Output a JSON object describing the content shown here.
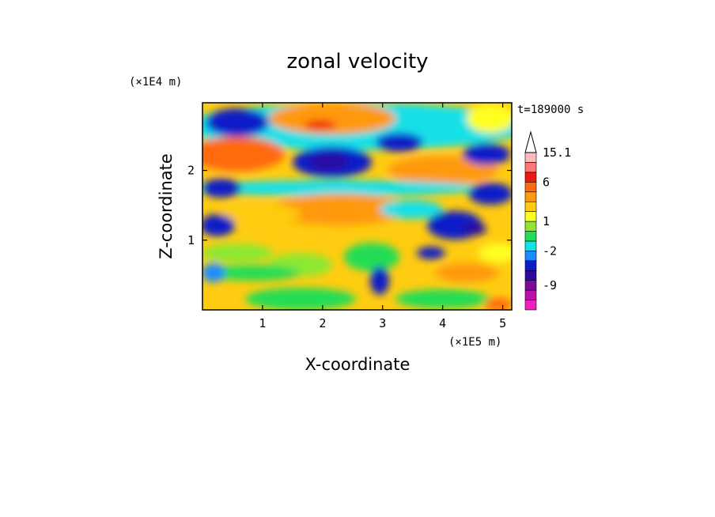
{
  "chart_data": {
    "type": "heatmap",
    "title": "zonal velocity",
    "xlabel": "X-coordinate",
    "ylabel": "Z-coordinate",
    "x_scale_note": "(×1E5 m)",
    "y_scale_note": "(×1E4 m)",
    "time_label": "t=189000 s",
    "xlim": [
      0,
      5.15
    ],
    "ylim": [
      0,
      2.97
    ],
    "x_ticks": [
      1,
      2,
      3,
      4,
      5
    ],
    "y_ticks": [
      1,
      2
    ],
    "colorbar": {
      "levels_bottom_to_top": [
        {
          "color": "#ee22bb"
        },
        {
          "color": "#bb11aa"
        },
        {
          "color": "#7d0a9a"
        },
        {
          "color": "#2a0aa0"
        },
        {
          "color": "#0a1fc8"
        },
        {
          "color": "#1e8cff"
        },
        {
          "color": "#18e0e8"
        },
        {
          "color": "#22dd55"
        },
        {
          "color": "#8ee830"
        },
        {
          "color": "#ffff22"
        },
        {
          "color": "#ffcc11"
        },
        {
          "color": "#ff9911"
        },
        {
          "color": "#ff6a10"
        },
        {
          "color": "#ee1a10"
        },
        {
          "color": "#ff7777"
        },
        {
          "color": "#ffbbbb"
        }
      ],
      "tick_labels": [
        {
          "label": "-9",
          "at_boundary": 2.5
        },
        {
          "label": "-2",
          "at_boundary": 6
        },
        {
          "label": "1",
          "at_boundary": 9
        },
        {
          "label": "6",
          "at_boundary": 13
        },
        {
          "label": "15.1",
          "at_boundary": 16
        }
      ],
      "max_arrow": true
    }
  }
}
